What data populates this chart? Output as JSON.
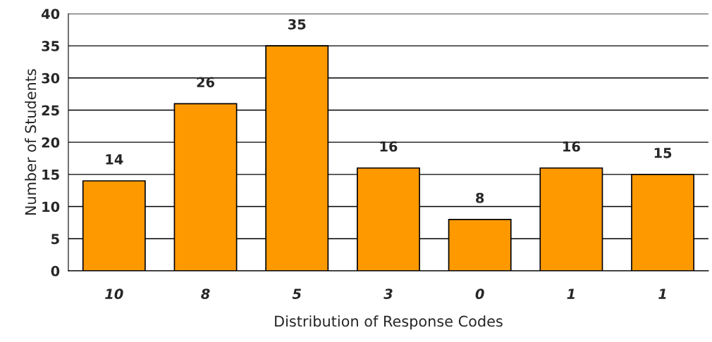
{
  "chart_data": {
    "type": "bar",
    "xlabel": "Distribution of Response Codes",
    "ylabel": "Number of Students",
    "categories": [
      "10",
      "8",
      "5",
      "3",
      "0",
      "1",
      "1"
    ],
    "values": [
      14,
      26,
      35,
      16,
      8,
      16,
      15
    ],
    "color": "#ff9900",
    "ylim": [
      0,
      40
    ],
    "yticks": [
      0,
      5,
      10,
      15,
      20,
      25,
      30,
      35,
      40
    ],
    "grid": "y",
    "data_labels": true
  }
}
